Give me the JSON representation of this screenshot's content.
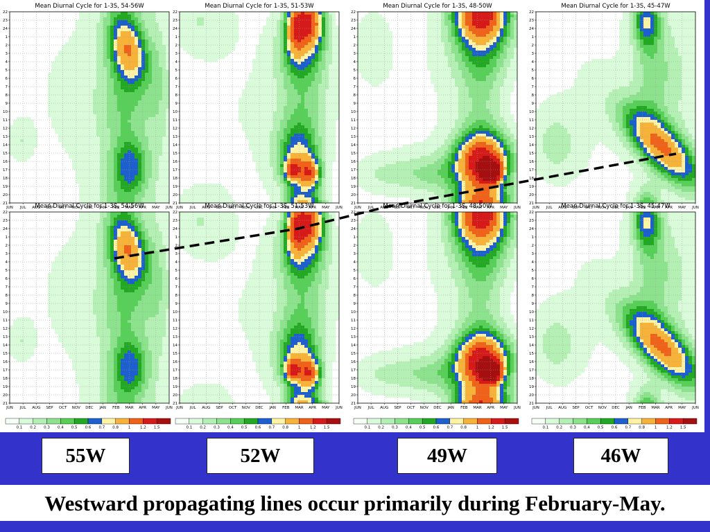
{
  "slide": {
    "title": "Westward propagating lines occur primarily during February-May.",
    "panel_labels": [
      "55W",
      "52W",
      "49W",
      "46W"
    ],
    "colors": {
      "band": "#3333cc",
      "background": "#ffffff",
      "annotation_line": "#000000"
    }
  },
  "chart_data": [
    {
      "type": "heatmap",
      "title": "Mean Diurnal Cycle for 1-3S, 54-56W",
      "x": [
        "JUN",
        "JUL",
        "AUG",
        "SEP",
        "OCT",
        "NOV",
        "DEC",
        "JAN",
        "FEB",
        "MAR",
        "APR",
        "MAY",
        "JUN"
      ],
      "y": [
        "22",
        "23",
        "24",
        "1",
        "2",
        "3",
        "4",
        "5",
        "6",
        "7",
        "8",
        "9",
        "10",
        "11",
        "12",
        "13",
        "14",
        "15",
        "16",
        "17",
        "18",
        "19",
        "20",
        "21"
      ],
      "legend_levels": [
        "0.1",
        "0.2",
        "0.3",
        "0.4",
        "0.5",
        "0.6",
        "0.7",
        "0.8",
        "1",
        "1.2",
        "1.5"
      ],
      "legend_colors": [
        "#f5fff5",
        "#d9fbd9",
        "#b4f0b4",
        "#8de28d",
        "#58cf58",
        "#22a822",
        "#1d5fcd",
        "#fff3a6",
        "#f7b23a",
        "#f0621a",
        "#d61a1a",
        "#a50f0f"
      ],
      "features": [
        {
          "x": 8.9,
          "y": 4.4,
          "peak": 0.8,
          "sx": 0.95,
          "sy": 2.8,
          "tilt": -0.1
        },
        {
          "x": 8.7,
          "y": 11,
          "peak": 0.32,
          "sx": 1.5,
          "sy": 5,
          "tilt": 0
        },
        {
          "x": 9.1,
          "y": 18.5,
          "peak": 0.4,
          "sx": 0.9,
          "sy": 2.3,
          "tilt": 0
        },
        {
          "x": 8.8,
          "y": 21.5,
          "peak": 0.22,
          "sx": 1.6,
          "sy": 3,
          "tilt": 0
        },
        {
          "x": 5,
          "y": 10,
          "peak": 0.11,
          "sx": 5,
          "sy": 14,
          "tilt": 0
        },
        {
          "x": 0.8,
          "y": 15.5,
          "peak": 0.13,
          "sx": 0.6,
          "sy": 1.6,
          "tilt": 0
        },
        {
          "x": 11.3,
          "y": 9,
          "peak": 0.18,
          "sx": 0.7,
          "sy": 7,
          "tilt": 0
        }
      ]
    },
    {
      "type": "heatmap",
      "title": "Mean Diurnal Cycle for 1-3S, 51-53W",
      "x": [
        "JUN",
        "JUL",
        "AUG",
        "SEP",
        "OCT",
        "NOV",
        "DEC",
        "JAN",
        "FEB",
        "MAR",
        "APR",
        "MAY",
        "JUN"
      ],
      "y": [
        "22",
        "23",
        "24",
        "1",
        "2",
        "3",
        "4",
        "5",
        "6",
        "7",
        "8",
        "9",
        "10",
        "11",
        "12",
        "13",
        "14",
        "15",
        "16",
        "17",
        "18",
        "19",
        "20",
        "21"
      ],
      "legend_levels": [
        "0.1",
        "0.2",
        "0.3",
        "0.4",
        "0.5",
        "0.6",
        "0.7",
        "0.8",
        "1",
        "1.2",
        "1.5"
      ],
      "legend_colors": [
        "#f5fff5",
        "#d9fbd9",
        "#b4f0b4",
        "#8de28d",
        "#58cf58",
        "#22a822",
        "#1d5fcd",
        "#fff3a6",
        "#f7b23a",
        "#f0621a",
        "#d61a1a",
        "#a50f0f"
      ],
      "features": [
        {
          "x": 9.8,
          "y": 1,
          "peak": 0.9,
          "sx": 0.75,
          "sy": 2,
          "tilt": 0
        },
        {
          "x": 8.7,
          "y": 1.5,
          "peak": 0.62,
          "sx": 0.5,
          "sy": 2.6,
          "tilt": 0
        },
        {
          "x": 9.3,
          "y": 4,
          "peak": 0.45,
          "sx": 1.2,
          "sy": 2.6,
          "tilt": 0
        },
        {
          "x": 9.3,
          "y": 10,
          "peak": 0.28,
          "sx": 1.4,
          "sy": 5,
          "tilt": 0
        },
        {
          "x": 8.9,
          "y": 17.5,
          "peak": 0.58,
          "sx": 1.1,
          "sy": 2.8,
          "tilt": 0
        },
        {
          "x": 9.8,
          "y": 19.5,
          "peak": 0.78,
          "sx": 0.55,
          "sy": 1.3,
          "tilt": 0
        },
        {
          "x": 8.5,
          "y": 19,
          "peak": 0.75,
          "sx": 0.4,
          "sy": 0.9,
          "tilt": 0
        },
        {
          "x": 1.5,
          "y": 1,
          "peak": 0.14,
          "sx": 1.6,
          "sy": 2.5,
          "tilt": 0
        },
        {
          "x": 5,
          "y": 12,
          "peak": 0.1,
          "sx": 6,
          "sy": 14,
          "tilt": 0
        }
      ]
    },
    {
      "type": "heatmap",
      "title": "Mean Diurnal Cycle for 1-3S, 48-50W",
      "x": [
        "JUN",
        "JUL",
        "AUG",
        "SEP",
        "OCT",
        "NOV",
        "DEC",
        "JAN",
        "FEB",
        "MAR",
        "APR",
        "MAY",
        "JUN"
      ],
      "y": [
        "22",
        "23",
        "24",
        "1",
        "2",
        "3",
        "4",
        "5",
        "6",
        "7",
        "8",
        "9",
        "10",
        "11",
        "12",
        "13",
        "14",
        "15",
        "16",
        "17",
        "18",
        "19",
        "20",
        "21"
      ],
      "legend_levels": [
        "0.1",
        "0.2",
        "0.3",
        "0.4",
        "0.5",
        "0.6",
        "0.7",
        "0.8",
        "1",
        "1.2",
        "1.5"
      ],
      "legend_colors": [
        "#f5fff5",
        "#d9fbd9",
        "#b4f0b4",
        "#8de28d",
        "#58cf58",
        "#22a822",
        "#1d5fcd",
        "#fff3a6",
        "#f7b23a",
        "#f0621a",
        "#d61a1a",
        "#a50f0f"
      ],
      "features": [
        {
          "x": 9.3,
          "y": 0.2,
          "peak": 1.1,
          "sx": 1.4,
          "sy": 2.2,
          "tilt": 0
        },
        {
          "x": 9.3,
          "y": 4,
          "peak": 0.4,
          "sx": 1.6,
          "sy": 3,
          "tilt": 0
        },
        {
          "x": 9.2,
          "y": 11,
          "peak": 0.22,
          "sx": 1.2,
          "sy": 5,
          "tilt": 0
        },
        {
          "x": 9.4,
          "y": 18,
          "peak": 1.3,
          "sx": 1.4,
          "sy": 2.3,
          "tilt": 0
        },
        {
          "x": 10,
          "y": 19.2,
          "peak": 1.55,
          "sx": 0.5,
          "sy": 0.8,
          "tilt": 0
        },
        {
          "x": 6,
          "y": 19.5,
          "peak": 0.22,
          "sx": 1.6,
          "sy": 1.7,
          "tilt": 0
        },
        {
          "x": 2.5,
          "y": 19.5,
          "peak": 0.16,
          "sx": 2,
          "sy": 1.5,
          "tilt": 0
        },
        {
          "x": 1,
          "y": 4,
          "peak": 0.1,
          "sx": 1,
          "sy": 3,
          "tilt": 0
        },
        {
          "x": 5,
          "y": 10,
          "peak": 0.09,
          "sx": 6,
          "sy": 14,
          "tilt": 0
        }
      ]
    },
    {
      "type": "heatmap",
      "title": "Mean Diurnal Cycle for 1-3S, 45-47W",
      "x": [
        "JUN",
        "JUL",
        "AUG",
        "SEP",
        "OCT",
        "NOV",
        "DEC",
        "JAN",
        "FEB",
        "MAR",
        "APR",
        "MAY",
        "JUN"
      ],
      "y": [
        "22",
        "23",
        "24",
        "1",
        "2",
        "3",
        "4",
        "5",
        "6",
        "7",
        "8",
        "9",
        "10",
        "11",
        "12",
        "13",
        "14",
        "15",
        "16",
        "17",
        "18",
        "19",
        "20",
        "21"
      ],
      "legend_levels": [
        "0.1",
        "0.2",
        "0.3",
        "0.4",
        "0.5",
        "0.6",
        "0.7",
        "0.8",
        "1",
        "1.2",
        "1.5"
      ],
      "legend_colors": [
        "#f5fff5",
        "#d9fbd9",
        "#b4f0b4",
        "#8de28d",
        "#58cf58",
        "#22a822",
        "#1d5fcd",
        "#fff3a6",
        "#f7b23a",
        "#f0621a",
        "#d61a1a",
        "#a50f0f"
      ],
      "features": [
        {
          "x": 9.5,
          "y": 16.3,
          "peak": 0.95,
          "sx": 1.35,
          "sy": 3.3,
          "tilt": -0.45
        },
        {
          "x": 8.3,
          "y": 1,
          "peak": 0.55,
          "sx": 0.7,
          "sy": 2.2,
          "tilt": 0
        },
        {
          "x": 8.8,
          "y": 7,
          "peak": 0.26,
          "sx": 1,
          "sy": 5,
          "tilt": 0
        },
        {
          "x": 1.5,
          "y": 16,
          "peak": 0.18,
          "sx": 1.2,
          "sy": 2.8,
          "tilt": 0
        },
        {
          "x": 5,
          "y": 10,
          "peak": 0.1,
          "sx": 6,
          "sy": 14,
          "tilt": 0
        },
        {
          "x": 11,
          "y": 8,
          "peak": 0.12,
          "sx": 1.2,
          "sy": 6,
          "tilt": 0
        }
      ]
    }
  ]
}
